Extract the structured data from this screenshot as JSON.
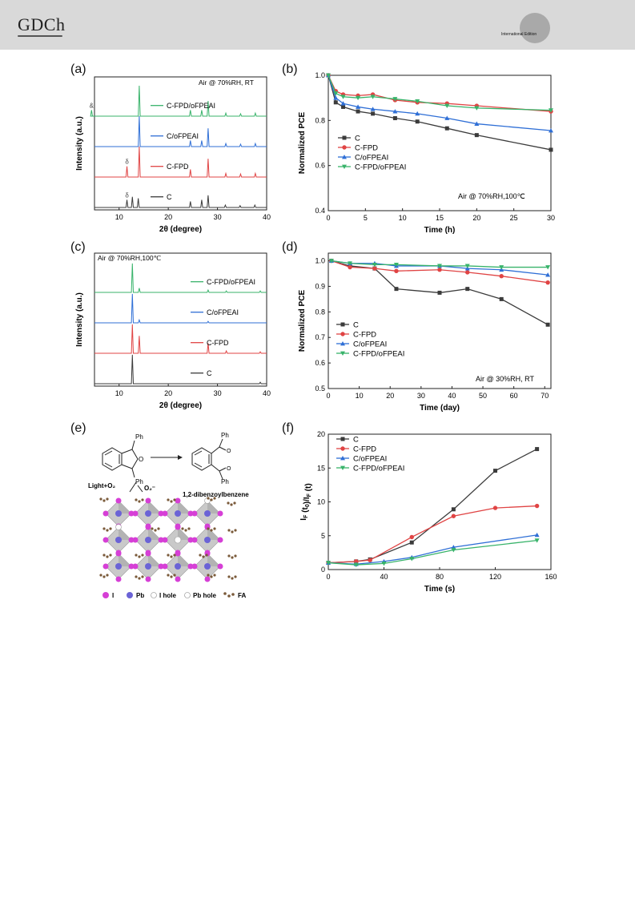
{
  "header": {
    "logo_text": "GDCh",
    "edition_text": "International Edition"
  },
  "panel_letters": {
    "a": "(a)",
    "b": "(b)",
    "c": "(c)",
    "d": "(d)",
    "e": "(e)",
    "f": "(f)"
  },
  "colors": {
    "C": "#3b3b3b",
    "C-FPD": "#e04444",
    "C/oFPEAI": "#2f6fd6",
    "C-FPD/oFPEAI": "#38b36a"
  },
  "chart_data": [
    {
      "id": "a",
      "type": "line",
      "xlabel": "2θ (degree)",
      "ylabel": "Intensity (a.u.)",
      "xlim": [
        5,
        40
      ],
      "xticks": [
        10,
        20,
        30,
        40
      ],
      "annotation": "Air @ 70%RH, RT",
      "series": [
        {
          "name": "C",
          "peaks": [
            11.6,
            12.7,
            13.9,
            24.5,
            26.8,
            28.1,
            31.6,
            34.6,
            37.6
          ],
          "heights": [
            0.25,
            0.35,
            0.3,
            0.2,
            0.25,
            0.4,
            0.08,
            0.06,
            0.08
          ]
        },
        {
          "name": "C-FPD",
          "peaks": [
            11.6,
            14.1,
            24.5,
            28.1,
            31.7,
            34.7,
            37.7
          ],
          "heights": [
            0.35,
            1.0,
            0.25,
            0.6,
            0.12,
            0.1,
            0.12
          ]
        },
        {
          "name": "C/oFPEAI",
          "peaks": [
            14.1,
            24.5,
            26.8,
            28.1,
            31.7,
            34.7,
            37.7
          ],
          "heights": [
            1.0,
            0.2,
            0.2,
            0.6,
            0.1,
            0.08,
            0.1
          ]
        },
        {
          "name": "C-FPD/oFPEAI",
          "peaks": [
            4.4,
            14.1,
            24.5,
            26.8,
            28.1,
            31.7,
            34.7,
            37.7
          ],
          "heights": [
            0.2,
            1.0,
            0.2,
            0.2,
            0.5,
            0.1,
            0.08,
            0.1
          ]
        }
      ],
      "peak_markers": [
        {
          "series": "C-FPD/oFPEAI",
          "x": 4.4,
          "label": "&"
        },
        {
          "series": "C-FPD",
          "x": 11.6,
          "label": "δ"
        },
        {
          "series": "C",
          "x": 11.6,
          "label": "δ"
        }
      ]
    },
    {
      "id": "b",
      "type": "line",
      "xlabel": "Time (h)",
      "ylabel": "Normalized PCE",
      "xlim": [
        0,
        30
      ],
      "ylim": [
        0.4,
        1.0
      ],
      "xticks": [
        0,
        5,
        10,
        15,
        20,
        25,
        30
      ],
      "yticks": [
        0.4,
        0.6,
        0.8,
        1.0
      ],
      "annotation": "Air @ 70%RH,100℃",
      "series": [
        {
          "name": "C",
          "marker": "square",
          "x": [
            0,
            1,
            2,
            4,
            6,
            9,
            12,
            16,
            20,
            30
          ],
          "values": [
            1.0,
            0.88,
            0.86,
            0.84,
            0.83,
            0.81,
            0.795,
            0.765,
            0.735,
            0.67
          ]
        },
        {
          "name": "C-FPD",
          "marker": "circle",
          "x": [
            0,
            1,
            2,
            4,
            6,
            9,
            12,
            16,
            20,
            30
          ],
          "values": [
            1.0,
            0.93,
            0.915,
            0.91,
            0.915,
            0.89,
            0.88,
            0.875,
            0.865,
            0.84
          ]
        },
        {
          "name": "C/oFPEAI",
          "marker": "triangle-up",
          "x": [
            0,
            1,
            2,
            4,
            6,
            9,
            12,
            16,
            20,
            30
          ],
          "values": [
            1.0,
            0.9,
            0.875,
            0.86,
            0.85,
            0.84,
            0.83,
            0.81,
            0.785,
            0.755
          ]
        },
        {
          "name": "C-FPD/oFPEAI",
          "marker": "triangle-down",
          "x": [
            0,
            1,
            2,
            4,
            6,
            9,
            12,
            16,
            20,
            30
          ],
          "values": [
            1.0,
            0.92,
            0.905,
            0.9,
            0.905,
            0.895,
            0.885,
            0.865,
            0.855,
            0.845
          ]
        }
      ]
    },
    {
      "id": "c",
      "type": "line",
      "xlabel": "2θ (degree)",
      "ylabel": "Intensity (a.u.)",
      "xlim": [
        5,
        40
      ],
      "xticks": [
        10,
        20,
        30,
        40
      ],
      "annotation": "Air @ 70%RH,100℃",
      "series": [
        {
          "name": "C",
          "peaks": [
            12.7,
            38.7
          ],
          "heights": [
            1.0,
            0.05
          ]
        },
        {
          "name": "C-FPD",
          "peaks": [
            12.7,
            14.1,
            28.1,
            31.8,
            38.7
          ],
          "heights": [
            1.0,
            0.6,
            0.35,
            0.08,
            0.05
          ]
        },
        {
          "name": "C/oFPEAI",
          "peaks": [
            12.7,
            14.1,
            28.1
          ],
          "heights": [
            1.0,
            0.1,
            0.05
          ]
        },
        {
          "name": "C-FPD/oFPEAI",
          "peaks": [
            12.7,
            14.1,
            28.1,
            31.8,
            38.7
          ],
          "heights": [
            1.0,
            0.15,
            0.08,
            0.05,
            0.05
          ]
        }
      ]
    },
    {
      "id": "d",
      "type": "line",
      "xlabel": "Time (day)",
      "ylabel": "Normalized PCE",
      "xlim": [
        0,
        72
      ],
      "ylim": [
        0.5,
        1.03
      ],
      "xticks": [
        0,
        10,
        20,
        30,
        40,
        50,
        60,
        70
      ],
      "yticks": [
        0.5,
        0.6,
        0.7,
        0.8,
        0.9,
        1.0
      ],
      "annotation": "Air @ 30%RH, RT",
      "series": [
        {
          "name": "C",
          "marker": "square",
          "x": [
            1,
            7,
            15,
            22,
            36,
            45,
            56,
            71
          ],
          "values": [
            1.0,
            0.98,
            0.97,
            0.89,
            0.875,
            0.89,
            0.85,
            0.75
          ]
        },
        {
          "name": "C-FPD",
          "marker": "circle",
          "x": [
            1,
            7,
            15,
            22,
            36,
            45,
            56,
            71
          ],
          "values": [
            1.0,
            0.975,
            0.97,
            0.96,
            0.965,
            0.955,
            0.94,
            0.915
          ]
        },
        {
          "name": "C/oFPEAI",
          "marker": "triangle-up",
          "x": [
            1,
            7,
            15,
            22,
            36,
            45,
            56,
            71
          ],
          "values": [
            1.0,
            0.99,
            0.99,
            0.98,
            0.98,
            0.97,
            0.965,
            0.945
          ]
        },
        {
          "name": "C-FPD/oFPEAI",
          "marker": "triangle-down",
          "x": [
            1,
            7,
            15,
            22,
            36,
            45,
            56,
            71
          ],
          "values": [
            1.0,
            0.99,
            0.985,
            0.985,
            0.98,
            0.98,
            0.975,
            0.975
          ]
        }
      ]
    },
    {
      "id": "f",
      "type": "line",
      "xlabel": "Time (s)",
      "ylabel": "I_F (t_0)/I_F (t)",
      "xlim": [
        0,
        160
      ],
      "ylim": [
        0,
        20
      ],
      "xticks": [
        0,
        40,
        80,
        120,
        160
      ],
      "yticks": [
        0,
        5,
        10,
        15,
        20
      ],
      "series": [
        {
          "name": "C",
          "marker": "square",
          "x": [
            0,
            20,
            30,
            60,
            90,
            120,
            150
          ],
          "values": [
            1.0,
            1.2,
            1.5,
            4.0,
            8.9,
            14.6,
            17.8
          ]
        },
        {
          "name": "C-FPD",
          "marker": "circle",
          "x": [
            0,
            20,
            30,
            60,
            90,
            120,
            150
          ],
          "values": [
            1.0,
            1.2,
            1.4,
            4.8,
            7.9,
            9.1,
            9.4
          ]
        },
        {
          "name": "C/oFPEAI",
          "marker": "triangle-up",
          "x": [
            0,
            20,
            40,
            60,
            90,
            150
          ],
          "values": [
            1.0,
            0.8,
            1.2,
            1.8,
            3.3,
            5.1
          ]
        },
        {
          "name": "C-FPD/oFPEAI",
          "marker": "triangle-down",
          "x": [
            0,
            20,
            40,
            60,
            90,
            150
          ],
          "values": [
            1.0,
            0.7,
            0.9,
            1.6,
            2.9,
            4.3
          ]
        }
      ]
    }
  ],
  "scheme_e": {
    "ph_top": "Ph",
    "ph_bottom": "Ph",
    "ph_top_right": "Ph",
    "ph_bottom_right": "Ph",
    "light_o2": "Light+O₂",
    "superoxide": "O₂⁻",
    "product": "1,2-dibenzoylbenzene",
    "legend": [
      {
        "symbol": "magenta-ball",
        "label": "I"
      },
      {
        "symbol": "blue-ball",
        "label": "Pb"
      },
      {
        "symbol": "open-circle",
        "label": "I hole"
      },
      {
        "symbol": "open-circle",
        "label": "Pb hole"
      },
      {
        "symbol": "fa-molecule",
        "label": "FA"
      }
    ]
  }
}
